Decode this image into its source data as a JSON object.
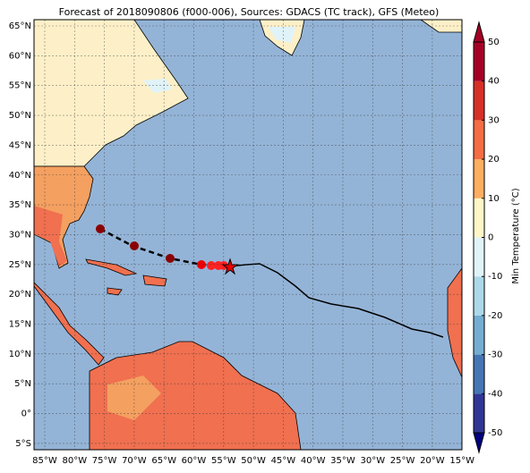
{
  "title": "Forecast of 2018090806 (f000-006), Sources: GDACS (TC track), GFS (Meteo)",
  "lat_ticks": [
    {
      "value": 65,
      "label": "65°N"
    },
    {
      "value": 60,
      "label": "60°N"
    },
    {
      "value": 55,
      "label": "55°N"
    },
    {
      "value": 50,
      "label": "50°N"
    },
    {
      "value": 45,
      "label": "45°N"
    },
    {
      "value": 40,
      "label": "40°N"
    },
    {
      "value": 35,
      "label": "35°N"
    },
    {
      "value": 30,
      "label": "30°N"
    },
    {
      "value": 25,
      "label": "25°N"
    },
    {
      "value": 20,
      "label": "20°N"
    },
    {
      "value": 15,
      "label": "15°N"
    },
    {
      "value": 10,
      "label": "10°N"
    },
    {
      "value": 5,
      "label": "5°N"
    },
    {
      "value": 0,
      "label": "0°"
    },
    {
      "value": -5,
      "label": "5°S"
    }
  ],
  "lon_ticks": [
    {
      "value": -85,
      "label": "85°W"
    },
    {
      "value": -80,
      "label": "80°W"
    },
    {
      "value": -75,
      "label": "75°W"
    },
    {
      "value": -70,
      "label": "70°W"
    },
    {
      "value": -65,
      "label": "65°W"
    },
    {
      "value": -60,
      "label": "60°W"
    },
    {
      "value": -55,
      "label": "55°W"
    },
    {
      "value": -50,
      "label": "50°W"
    },
    {
      "value": -45,
      "label": "45°W"
    },
    {
      "value": -40,
      "label": "40°W"
    },
    {
      "value": -35,
      "label": "35°W"
    },
    {
      "value": -30,
      "label": "30°W"
    },
    {
      "value": -25,
      "label": "25°W"
    },
    {
      "value": -20,
      "label": "20°W"
    },
    {
      "value": -15,
      "label": "15°W"
    }
  ],
  "colorbar": {
    "label": "Min Temperature (°C)",
    "ticks": [
      50,
      40,
      30,
      20,
      10,
      0,
      -10,
      -20,
      -30,
      -40,
      -50
    ],
    "colors": [
      "#313695",
      "#4575b4",
      "#74add1",
      "#abd9e9",
      "#e0f3f8",
      "#fff6c8",
      "#fdae61",
      "#f46d43",
      "#d73027",
      "#a50026"
    ]
  }
}
